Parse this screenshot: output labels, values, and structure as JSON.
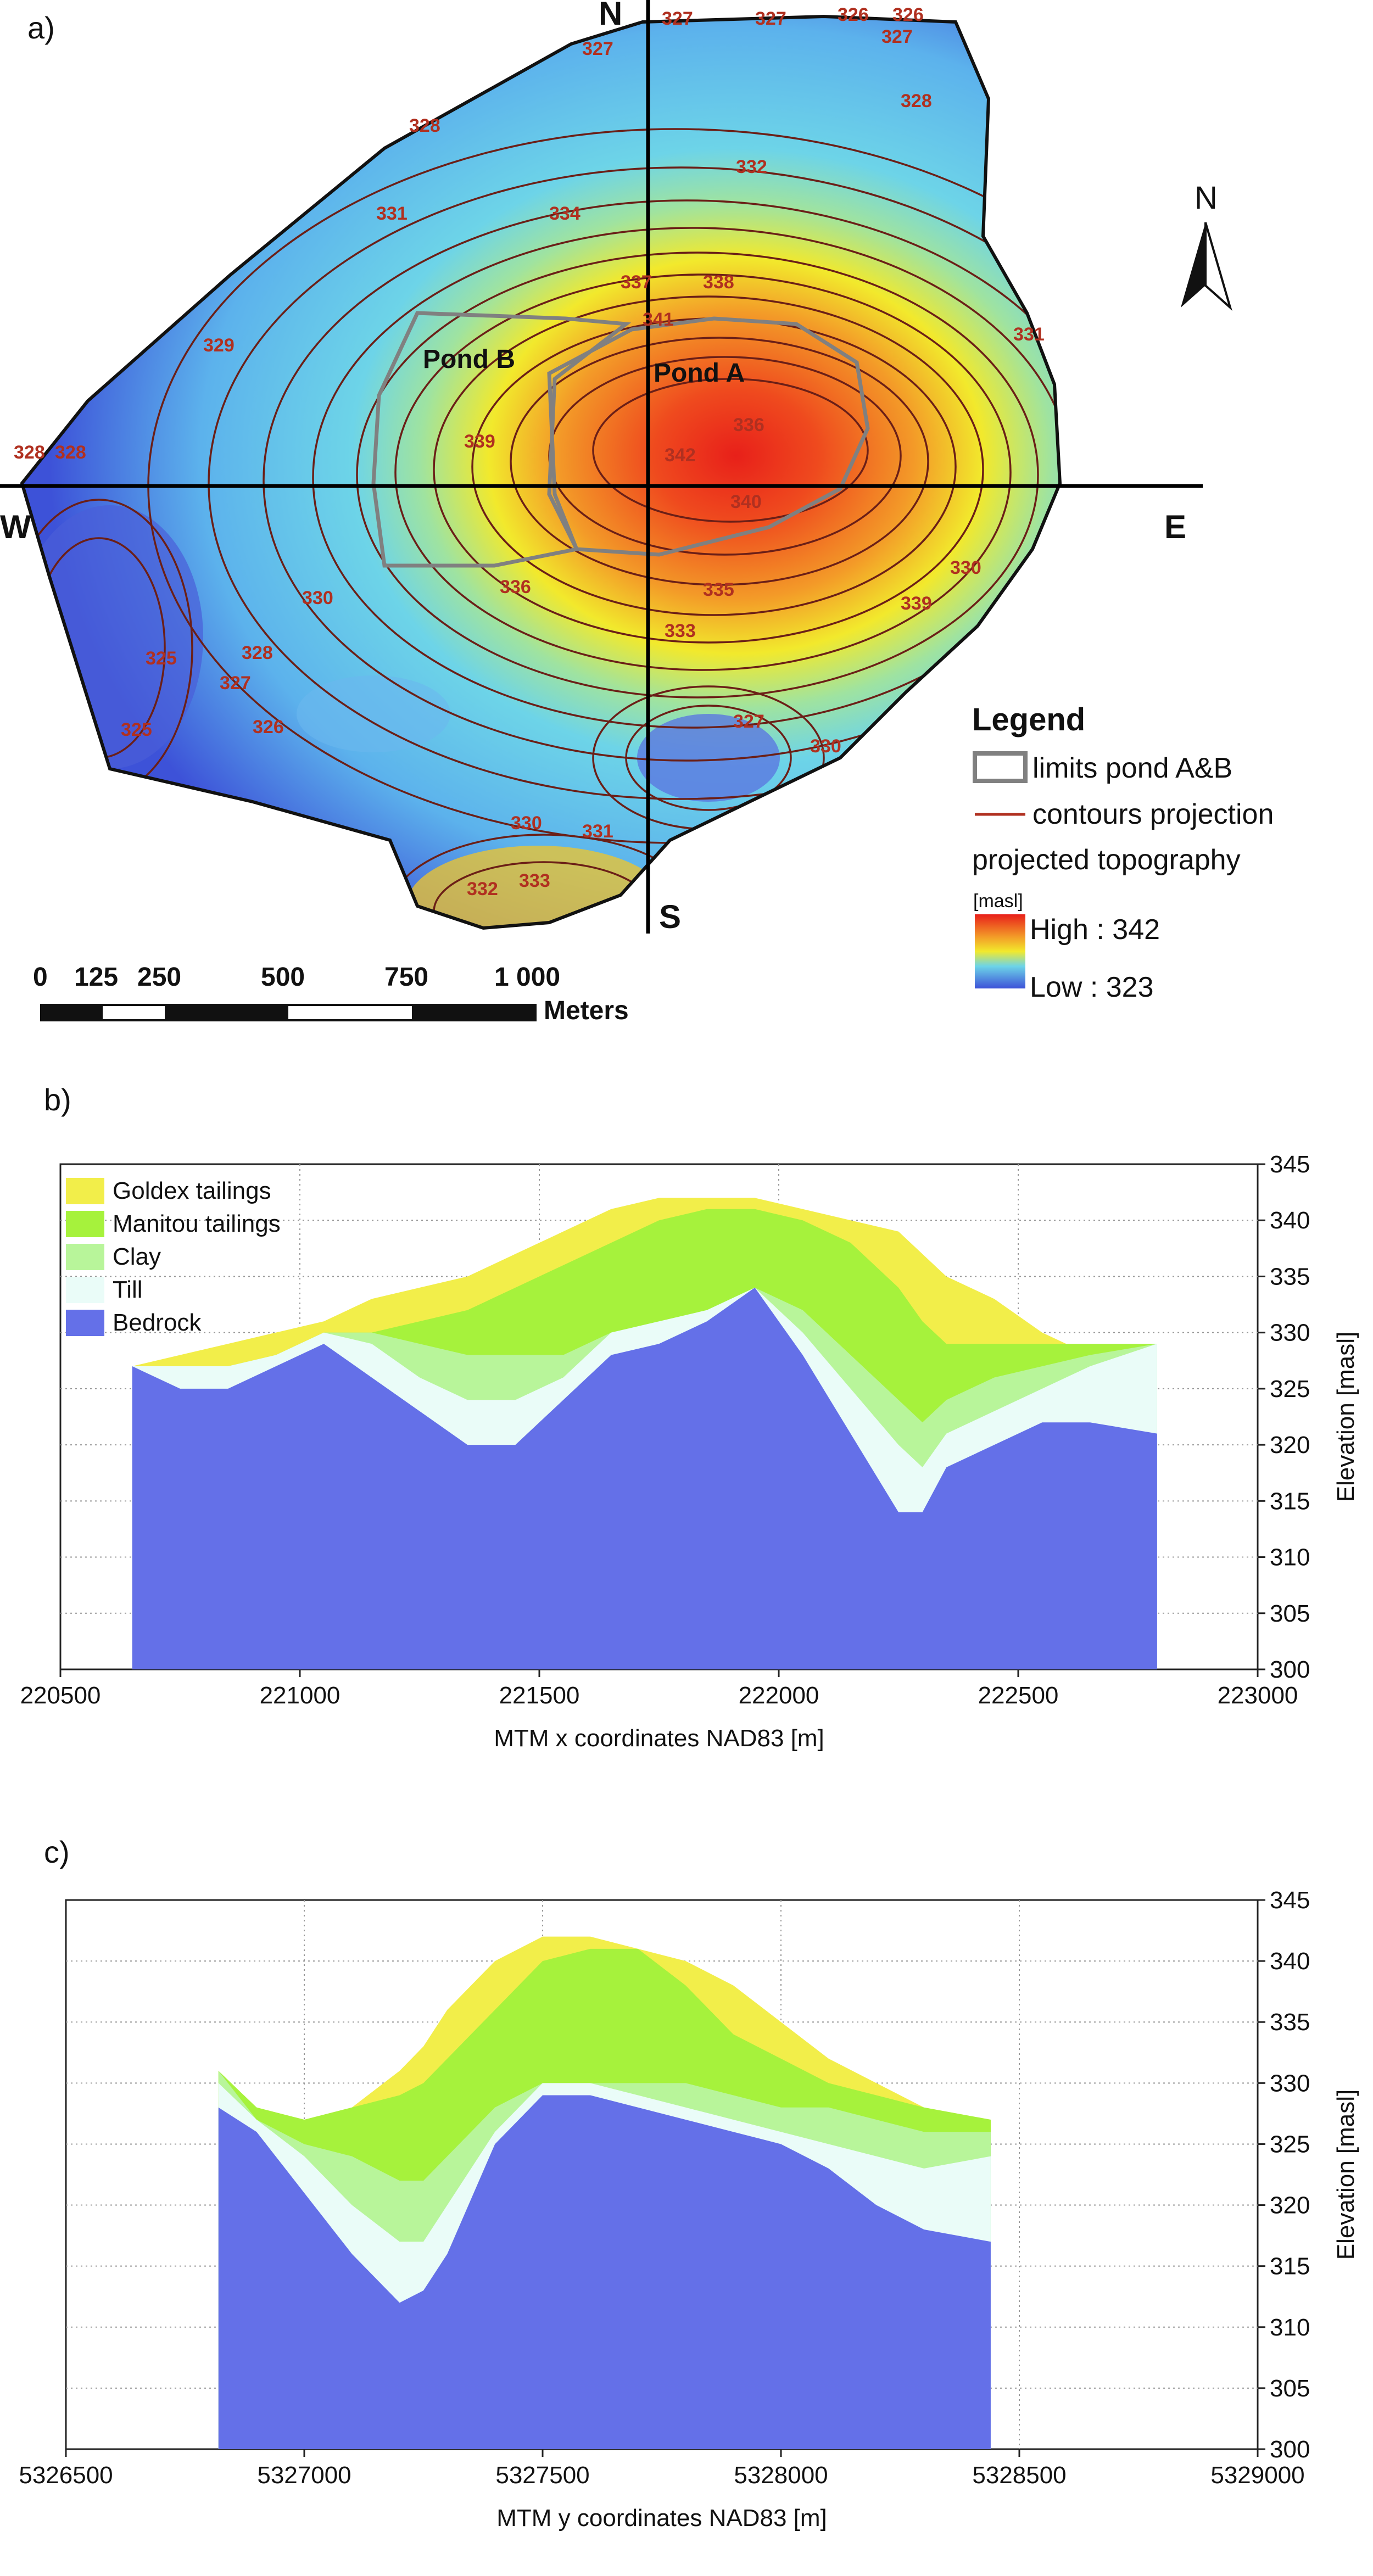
{
  "panel_labels": [
    "a)",
    "b)",
    "c)"
  ],
  "map": {
    "compass": {
      "north": "N",
      "south": "S",
      "east": "E",
      "west": "W"
    },
    "north_arrow_label": "N",
    "pond_labels": [
      "Pond B",
      "Pond A"
    ],
    "contour_labels": [
      "327",
      "327",
      "326",
      "326",
      "327",
      "327",
      "328",
      "328",
      "331",
      "332",
      "334",
      "337",
      "338",
      "331",
      "329",
      "328",
      "328",
      "339",
      "341",
      "342",
      "336",
      "340",
      "330",
      "336",
      "335",
      "333",
      "339",
      "330",
      "328",
      "325",
      "327",
      "326",
      "325",
      "327",
      "330",
      "330",
      "331",
      "332",
      "333"
    ],
    "legend": {
      "title": "Legend",
      "items": [
        "limits pond A&B",
        "contours projection",
        "projected topography"
      ],
      "unit": "[masl]",
      "high": "High : 342",
      "low": "Low : 323"
    },
    "scalebar": {
      "ticks": [
        "0",
        "125",
        "250",
        "500",
        "750",
        "1 000"
      ],
      "unit": "Meters"
    },
    "colors": {
      "high": "#e8201a",
      "mid": "#f2e92c",
      "low": "#3d52d8",
      "contour": "#6b1f17",
      "pond_limit": "#808080"
    }
  },
  "chart_data": [
    {
      "type": "area",
      "panel": "b)",
      "xlabel": "MTM x coordinates NAD83 [m]",
      "ylabel": "Elevation [masl]",
      "xlim": [
        220500,
        223000
      ],
      "ylim": [
        300,
        345
      ],
      "x_ticks": [
        "220500",
        "221000",
        "221500",
        "222000",
        "222500",
        "223000"
      ],
      "y_ticks": [
        "300",
        "305",
        "310",
        "315",
        "320",
        "325",
        "330",
        "335",
        "340",
        "345"
      ],
      "legend": [
        "Goldex tailings",
        "Manitou tailings",
        "Clay",
        "Till",
        "Bedrock"
      ],
      "colors": {
        "Goldex tailings": "#f2ee4a",
        "Manitou tailings": "#a6f23c",
        "Clay": "#b8f59a",
        "Till": "#eafcf8",
        "Bedrock": "#6470e8"
      },
      "x": [
        220650,
        220750,
        220850,
        220950,
        221050,
        221150,
        221250,
        221350,
        221450,
        221550,
        221650,
        221750,
        221850,
        221950,
        222050,
        222150,
        222250,
        222300,
        222350,
        222450,
        222550,
        222650,
        222790
      ],
      "series": [
        {
          "name": "Bedrock",
          "values": [
            327,
            325,
            325,
            327,
            329,
            326,
            323,
            320,
            320,
            324,
            328,
            329,
            331,
            334,
            328,
            321,
            314,
            314,
            318,
            320,
            322,
            322,
            321
          ]
        },
        {
          "name": "Till",
          "values": [
            327,
            327,
            327,
            328,
            330,
            329,
            326,
            324,
            324,
            326,
            330,
            331,
            332,
            334,
            330,
            325,
            320,
            318,
            321,
            323,
            325,
            327,
            329
          ]
        },
        {
          "name": "Clay",
          "values": [
            327,
            327,
            327,
            328,
            330,
            330,
            329,
            328,
            328,
            328,
            330,
            331,
            332,
            334,
            332,
            328,
            324,
            322,
            324,
            326,
            327,
            328,
            329
          ]
        },
        {
          "name": "Manitou tailings",
          "values": [
            327,
            327,
            327,
            328,
            330,
            330,
            331,
            332,
            334,
            336,
            338,
            340,
            341,
            341,
            340,
            338,
            334,
            331,
            329,
            329,
            329,
            329,
            329
          ]
        },
        {
          "name": "Goldex tailings",
          "values": [
            327,
            328,
            329,
            330,
            331,
            333,
            334,
            335,
            337,
            339,
            341,
            342,
            342,
            342,
            341,
            340,
            339,
            337,
            335,
            333,
            330,
            328,
            329
          ]
        }
      ]
    },
    {
      "type": "area",
      "panel": "c)",
      "xlabel": "MTM y coordinates NAD83 [m]",
      "ylabel": "Elevation [masl]",
      "xlim": [
        5326500,
        5329000
      ],
      "ylim": [
        300,
        345
      ],
      "x_ticks": [
        "5326500",
        "5327000",
        "5327500",
        "5328000",
        "5328500",
        "5329000"
      ],
      "y_ticks": [
        "300",
        "305",
        "310",
        "315",
        "320",
        "325",
        "330",
        "335",
        "340",
        "345"
      ],
      "colors": {
        "Goldex tailings": "#f2ee4a",
        "Manitou tailings": "#a6f23c",
        "Clay": "#b8f59a",
        "Till": "#eafcf8",
        "Bedrock": "#6470e8"
      },
      "x": [
        5326820,
        5326900,
        5327000,
        5327100,
        5327200,
        5327250,
        5327300,
        5327400,
        5327500,
        5327600,
        5327700,
        5327800,
        5327900,
        5328000,
        5328100,
        5328200,
        5328300,
        5328440
      ],
      "series": [
        {
          "name": "Bedrock",
          "values": [
            328,
            326,
            321,
            316,
            312,
            313,
            316,
            325,
            329,
            329,
            328,
            327,
            326,
            325,
            323,
            320,
            318,
            317
          ]
        },
        {
          "name": "Till",
          "values": [
            330,
            327,
            324,
            320,
            317,
            317,
            320,
            326,
            330,
            330,
            329,
            328,
            327,
            326,
            325,
            324,
            323,
            324
          ]
        },
        {
          "name": "Clay",
          "values": [
            331,
            327,
            325,
            324,
            322,
            322,
            324,
            328,
            330,
            330,
            330,
            330,
            329,
            328,
            328,
            327,
            326,
            326
          ]
        },
        {
          "name": "Manitou tailings",
          "values": [
            331,
            328,
            327,
            328,
            329,
            330,
            332,
            336,
            340,
            341,
            341,
            338,
            334,
            332,
            330,
            329,
            328,
            327
          ]
        },
        {
          "name": "Goldex tailings",
          "values": [
            331,
            328,
            327,
            328,
            331,
            333,
            336,
            340,
            342,
            342,
            341,
            340,
            338,
            335,
            332,
            330,
            328,
            327
          ]
        }
      ]
    }
  ]
}
